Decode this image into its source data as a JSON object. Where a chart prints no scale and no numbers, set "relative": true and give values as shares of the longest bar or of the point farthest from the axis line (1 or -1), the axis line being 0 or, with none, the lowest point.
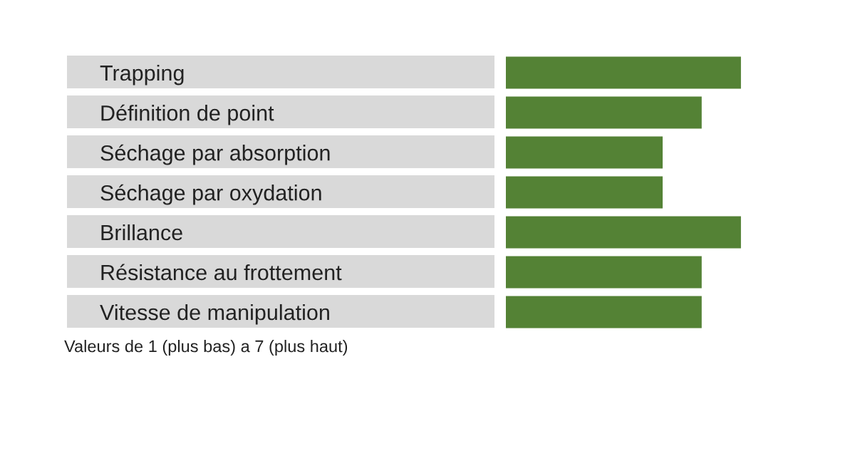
{
  "chart_data": {
    "type": "bar",
    "orientation": "horizontal",
    "relative": true,
    "categories": [
      "Trapping",
      "Définition de point",
      "Séchage par absorption",
      "Séchage par oxydation",
      "Brillance",
      "Résistance au frottement",
      "Vitesse de manipulation"
    ],
    "values": [
      1,
      0.833,
      0.667,
      0.667,
      1,
      0.833,
      0.833
    ],
    "color": "#548235",
    "annotations": [
      "Valeurs de 1 (plus bas) a 7 (plus haut)"
    ],
    "grid": false,
    "legend": false
  }
}
